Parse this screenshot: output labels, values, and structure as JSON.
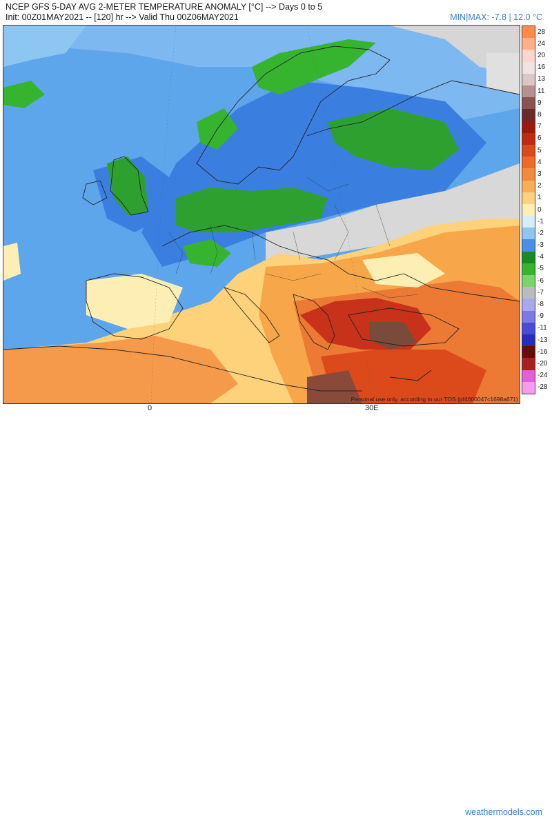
{
  "header": {
    "title": "NCEP GFS 5-DAY AVG 2-METER TEMPERATURE ANOMALY [°C] --> Days 0 to 5",
    "subtitle": "Init: 00Z01MAY2021 -- [120] hr --> Valid Thu 00Z06MAY2021",
    "minmax": "MIN|MAX: -7.8 | 12.0 °C"
  },
  "map": {
    "credit": "Personal use only, according to our TOS (pf4600047c1698a671)",
    "lon_labels": [
      "0",
      "30E"
    ]
  },
  "footer": {
    "brand": "weathermodels.com"
  },
  "legend": {
    "levels": [
      {
        "label": "28",
        "color": "#ff8a4a"
      },
      {
        "label": "24",
        "color": "#ffb08a"
      },
      {
        "label": "20",
        "color": "#ffd6cc"
      },
      {
        "label": "16",
        "color": "#f1e3e3"
      },
      {
        "label": "13",
        "color": "#dcc6c6"
      },
      {
        "label": "11",
        "color": "#b69090"
      },
      {
        "label": "9",
        "color": "#8a5252"
      },
      {
        "label": "8",
        "color": "#6a2a2a"
      },
      {
        "label": "7",
        "color": "#9a1a10"
      },
      {
        "label": "6",
        "color": "#c02a14"
      },
      {
        "label": "5",
        "color": "#dc4a1c"
      },
      {
        "label": "4",
        "color": "#ec6a2a"
      },
      {
        "label": "3",
        "color": "#f28c3c"
      },
      {
        "label": "2",
        "color": "#f8ae58"
      },
      {
        "label": "1",
        "color": "#fcd282"
      },
      {
        "label": "0",
        "color": "#fdefb4"
      },
      {
        "label": "-1",
        "color": "#d6eefa"
      },
      {
        "label": "-2",
        "color": "#8ec6f2"
      },
      {
        "label": "-3",
        "color": "#4a8ee6"
      },
      {
        "label": "-4",
        "color": "#1a8a22"
      },
      {
        "label": "-5",
        "color": "#36b430"
      },
      {
        "label": "-6",
        "color": "#7ad46a"
      },
      {
        "label": "-7",
        "color": "#bcbcbc"
      },
      {
        "label": "-8",
        "color": "#a8a8ec"
      },
      {
        "label": "-9",
        "color": "#7a7ae2"
      },
      {
        "label": "-11",
        "color": "#4a4ad6"
      },
      {
        "label": "-13",
        "color": "#2a2abe"
      },
      {
        "label": "-16",
        "color": "#6a0a0a"
      },
      {
        "label": "-20",
        "color": "#a82020"
      },
      {
        "label": "-24",
        "color": "#e060d8"
      },
      {
        "label": "-28",
        "color": "#f89af0"
      }
    ]
  }
}
